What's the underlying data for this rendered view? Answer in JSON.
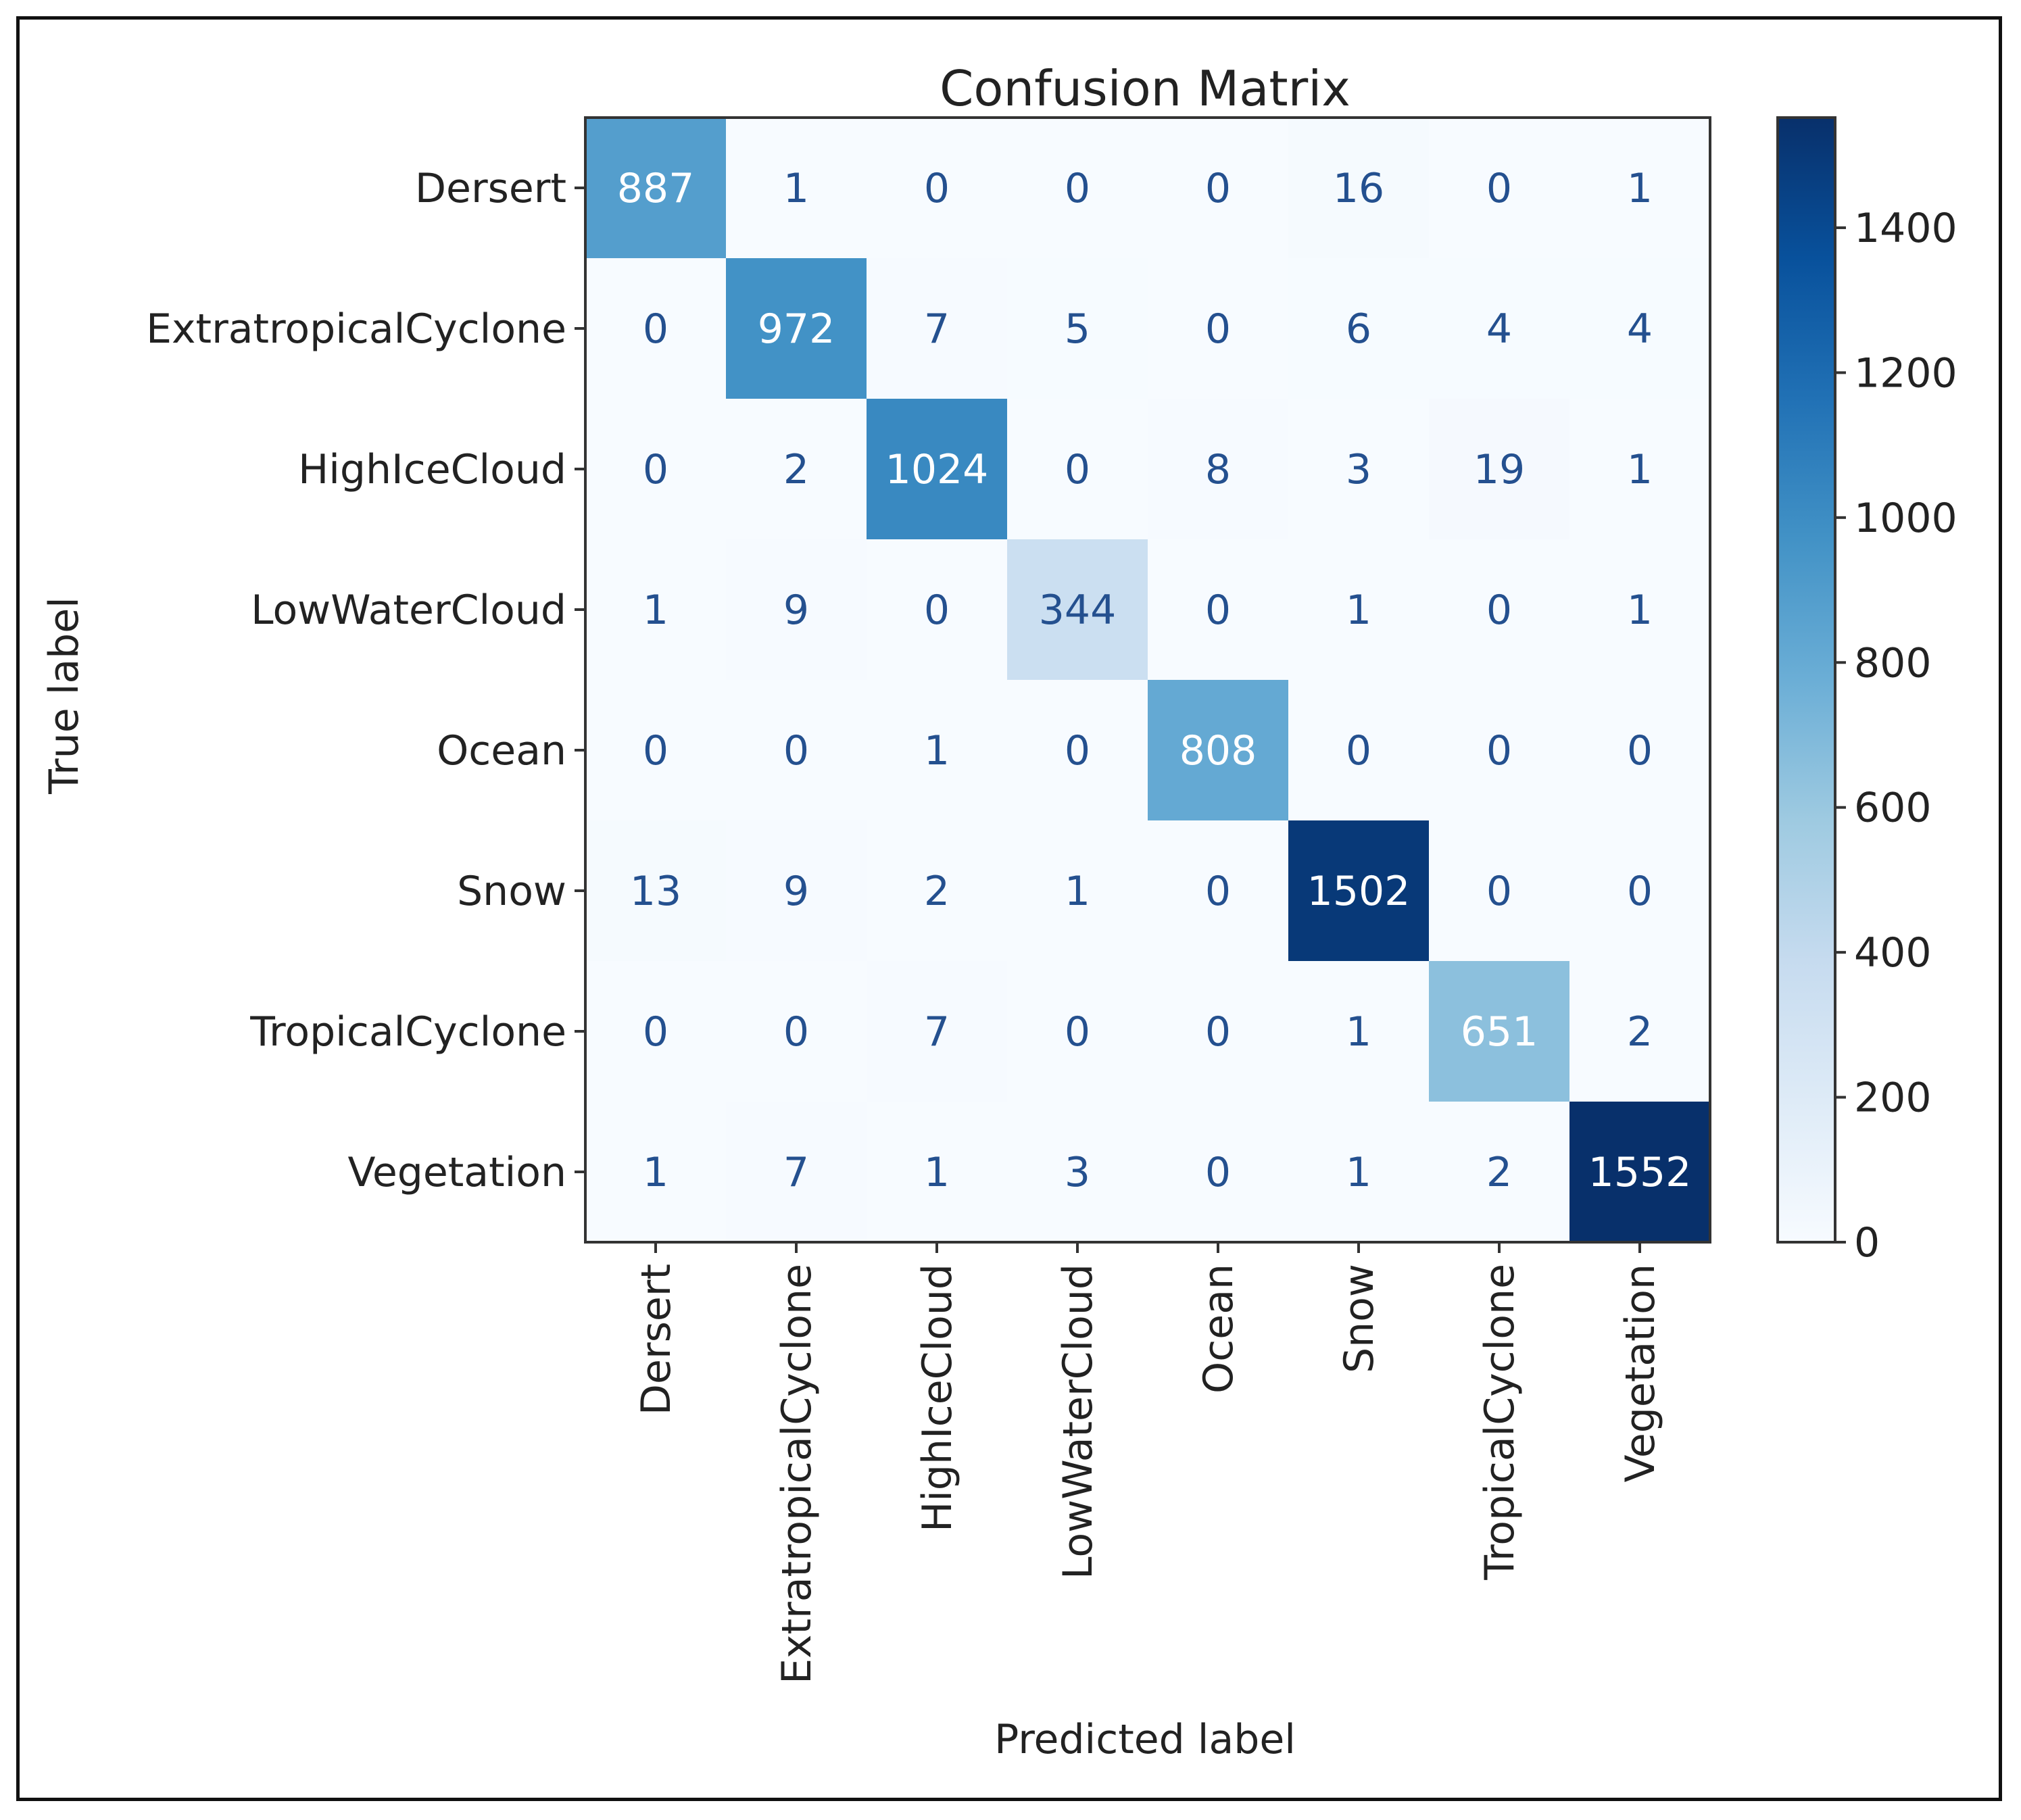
{
  "chart_data": {
    "type": "heatmap",
    "title": "Confusion Matrix",
    "xlabel": "Predicted label",
    "ylabel": "True label",
    "x_categories": [
      "Dersert",
      "ExtratropicalCyclone",
      "HighIceCloud",
      "LowWaterCloud",
      "Ocean",
      "Snow",
      "TropicalCyclone",
      "Vegetation"
    ],
    "y_categories": [
      "Dersert",
      "ExtratropicalCyclone",
      "HighIceCloud",
      "LowWaterCloud",
      "Ocean",
      "Snow",
      "TropicalCyclone",
      "Vegetation"
    ],
    "values": [
      [
        887,
        1,
        0,
        0,
        0,
        16,
        0,
        1
      ],
      [
        0,
        972,
        7,
        5,
        0,
        6,
        4,
        4
      ],
      [
        0,
        2,
        1024,
        0,
        8,
        3,
        19,
        1
      ],
      [
        1,
        9,
        0,
        344,
        0,
        1,
        0,
        1
      ],
      [
        0,
        0,
        1,
        0,
        808,
        0,
        0,
        0
      ],
      [
        13,
        9,
        2,
        1,
        0,
        1502,
        0,
        0
      ],
      [
        0,
        0,
        7,
        0,
        0,
        1,
        651,
        2
      ],
      [
        1,
        7,
        1,
        3,
        0,
        1,
        2,
        1552
      ]
    ],
    "colormap": "Blues",
    "colorbar": {
      "range": [
        0,
        1552
      ],
      "ticks": [
        0,
        200,
        400,
        600,
        800,
        1000,
        1200,
        1400
      ]
    }
  }
}
